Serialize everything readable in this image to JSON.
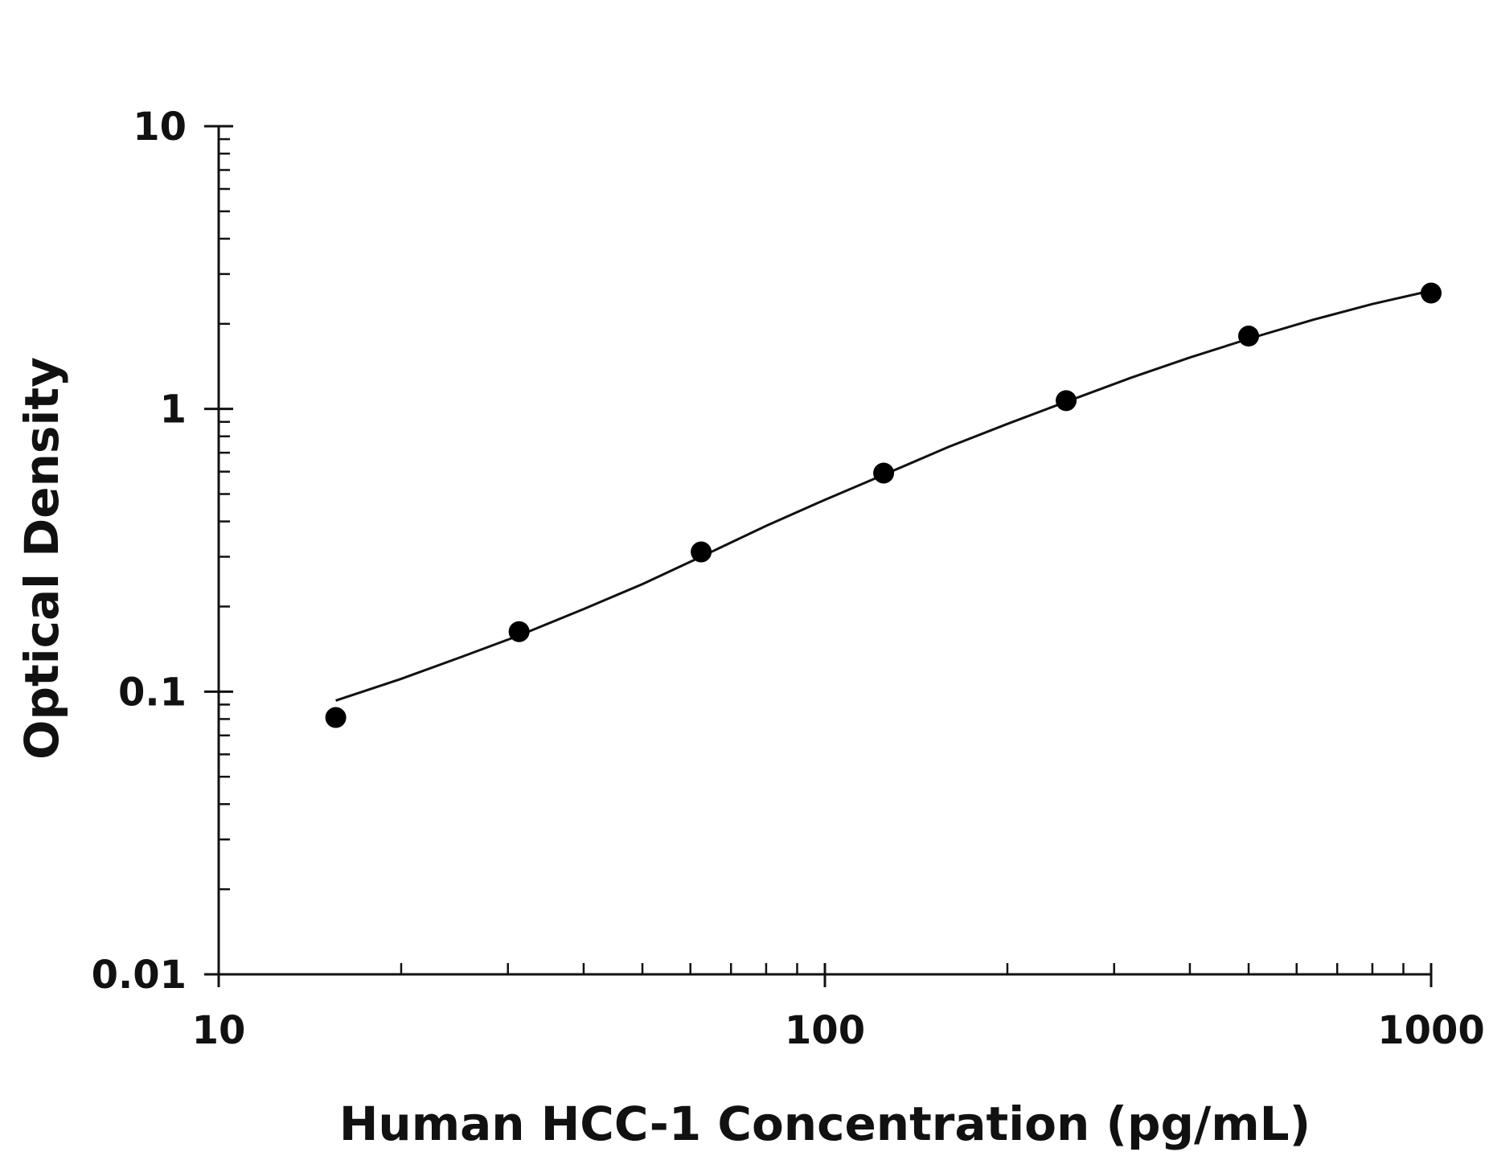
{
  "chart_data": {
    "type": "scatter",
    "xlabel": "Human HCC-1 Concentration (pg/mL)",
    "ylabel": "Optical Density",
    "xscale": "log",
    "yscale": "log",
    "xlim": [
      10,
      1000
    ],
    "ylim": [
      0.01,
      10
    ],
    "x_ticks": [
      10,
      100,
      1000
    ],
    "x_tick_labels": [
      "10",
      "100",
      "1000"
    ],
    "y_ticks": [
      0.01,
      0.1,
      1,
      10
    ],
    "y_tick_labels": [
      "0.01",
      "0.1",
      "1",
      "10"
    ],
    "grid": false,
    "legend": "none",
    "points": [
      {
        "x": 15.6,
        "y": 0.081
      },
      {
        "x": 31.3,
        "y": 0.163
      },
      {
        "x": 62.5,
        "y": 0.312
      },
      {
        "x": 125,
        "y": 0.593
      },
      {
        "x": 250,
        "y": 1.07
      },
      {
        "x": 500,
        "y": 1.81
      },
      {
        "x": 1000,
        "y": 2.57
      }
    ],
    "fit_curve": {
      "x": [
        15.6,
        20,
        25,
        31.3,
        40,
        50,
        62.5,
        80,
        100,
        125,
        160,
        200,
        250,
        320,
        400,
        500,
        640,
        800,
        1000
      ],
      "y": [
        0.093,
        0.111,
        0.132,
        0.158,
        0.196,
        0.24,
        0.3,
        0.386,
        0.477,
        0.585,
        0.734,
        0.885,
        1.06,
        1.29,
        1.52,
        1.77,
        2.07,
        2.35,
        2.62
      ]
    },
    "colors": {
      "points": "#000000",
      "curve": "#111111",
      "axes": "#111111"
    }
  }
}
